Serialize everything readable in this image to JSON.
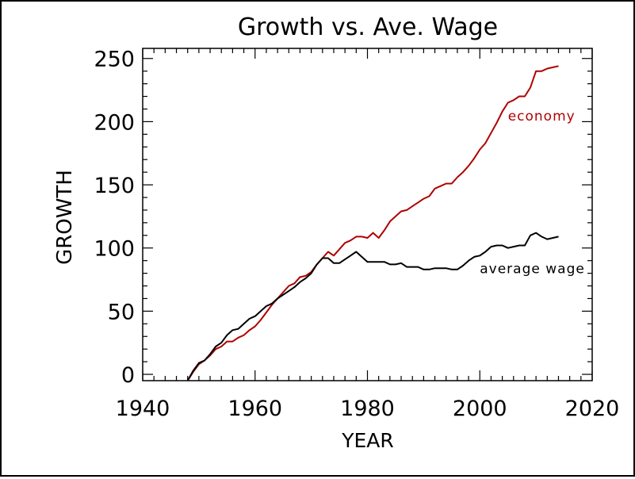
{
  "chart_data": {
    "type": "line",
    "title": "Growth vs. Ave. Wage",
    "xlabel": "YEAR",
    "ylabel": "GROWTH",
    "xlim": [
      1940,
      2020
    ],
    "ylim": [
      -5,
      258
    ],
    "xticks": [
      1940,
      1960,
      1980,
      2000,
      2020
    ],
    "yticks": [
      0,
      50,
      100,
      150,
      200,
      250
    ],
    "xtick_labels": [
      "1940",
      "1960",
      "1980",
      "2000",
      "2020"
    ],
    "ytick_labels": [
      "0",
      "50",
      "100",
      "150",
      "200",
      "250"
    ],
    "grid": false,
    "legend": "inline labels",
    "series": [
      {
        "name": "economy",
        "color": "#b00000",
        "x": [
          1948,
          1949,
          1950,
          1951,
          1952,
          1953,
          1954,
          1955,
          1956,
          1957,
          1958,
          1959,
          1960,
          1961,
          1962,
          1963,
          1964,
          1965,
          1966,
          1967,
          1968,
          1969,
          1970,
          1971,
          1972,
          1973,
          1974,
          1975,
          1976,
          1977,
          1978,
          1979,
          1980,
          1981,
          1982,
          1983,
          1984,
          1985,
          1986,
          1987,
          1988,
          1989,
          1990,
          1991,
          1992,
          1993,
          1994,
          1995,
          1996,
          1997,
          1998,
          1999,
          2000,
          2001,
          2002,
          2003,
          2004,
          2005,
          2006,
          2007,
          2008,
          2009,
          2010,
          2011,
          2012,
          2013,
          2014
        ],
        "y": [
          -5,
          2,
          8,
          11,
          15,
          20,
          22,
          26,
          26,
          29,
          31,
          35,
          38,
          43,
          49,
          55,
          60,
          65,
          70,
          72,
          77,
          78,
          81,
          87,
          92,
          97,
          94,
          99,
          104,
          106,
          109,
          109,
          108,
          112,
          108,
          114,
          121,
          125,
          129,
          130,
          133,
          136,
          139,
          141,
          147,
          149,
          151,
          151,
          156,
          160,
          165,
          171,
          178,
          183,
          191,
          199,
          208,
          215,
          217,
          220,
          220,
          227,
          240,
          240,
          242,
          243,
          244
        ]
      },
      {
        "name": "average wage",
        "color": "#000000",
        "x": [
          1948,
          1949,
          1950,
          1951,
          1952,
          1953,
          1954,
          1955,
          1956,
          1957,
          1958,
          1959,
          1960,
          1961,
          1962,
          1963,
          1964,
          1965,
          1966,
          1967,
          1968,
          1969,
          1970,
          1971,
          1972,
          1973,
          1974,
          1975,
          1976,
          1977,
          1978,
          1979,
          1980,
          1981,
          1982,
          1983,
          1984,
          1985,
          1986,
          1987,
          1988,
          1989,
          1990,
          1991,
          1992,
          1993,
          1994,
          1995,
          1996,
          1997,
          1998,
          1999,
          2000,
          2001,
          2002,
          2003,
          2004,
          2005,
          2006,
          2007,
          2008,
          2009,
          2010,
          2011,
          2012,
          2013,
          2014
        ],
        "y": [
          -5,
          3,
          9,
          11,
          16,
          22,
          25,
          31,
          35,
          36,
          40,
          44,
          46,
          50,
          54,
          56,
          60,
          63,
          66,
          69,
          73,
          76,
          80,
          87,
          92,
          92,
          88,
          88,
          91,
          94,
          97,
          93,
          89,
          89,
          89,
          89,
          87,
          87,
          88,
          85,
          85,
          85,
          83,
          83,
          84,
          84,
          84,
          83,
          83,
          86,
          90,
          93,
          94,
          97,
          101,
          102,
          102,
          100,
          101,
          102,
          102,
          110,
          112,
          109,
          107,
          108,
          109
        ]
      }
    ],
    "annotations": [
      {
        "text": "economy",
        "x": 2005,
        "y": 201,
        "color": "#b00000"
      },
      {
        "text": "average wage",
        "x": 2000,
        "y": 80,
        "color": "#000000"
      }
    ]
  }
}
